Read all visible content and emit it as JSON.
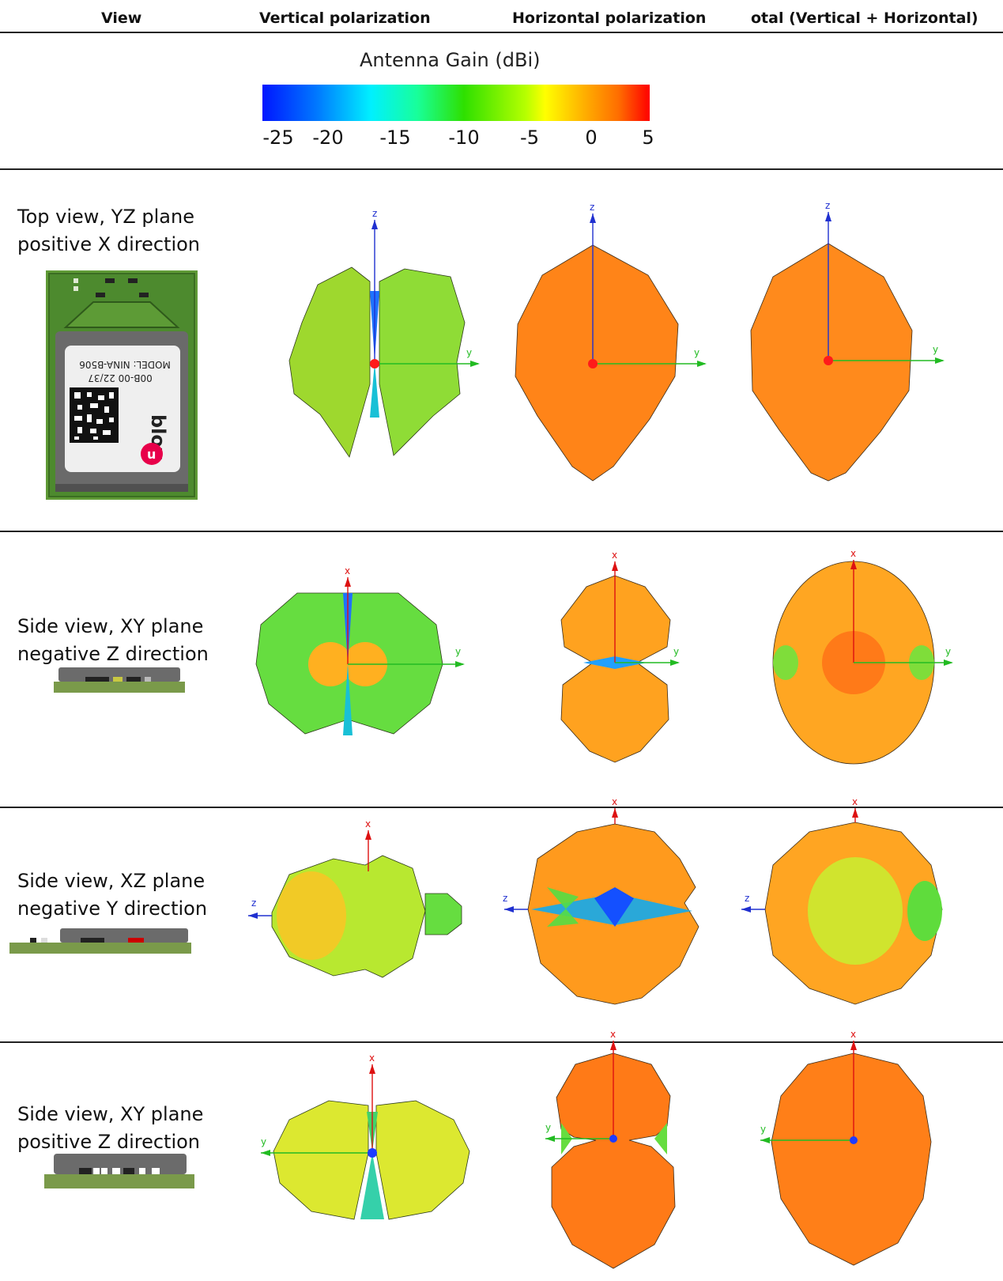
{
  "header": {
    "col_view": "View",
    "col_vertical": "Vertical polarization",
    "col_horizontal": "Horizontal polarization",
    "col_total": "otal (Vertical + Horizontal)"
  },
  "legend": {
    "title": "Antenna Gain (dBi)",
    "ticks": [
      "-25",
      "-20",
      "-15",
      "-10",
      "-5",
      "0",
      "5"
    ],
    "colors": [
      "#0016ff",
      "#00f0ff",
      "#2ee000",
      "#ffff00",
      "#ff6d00",
      "#ff0000"
    ]
  },
  "module": {
    "label_model": "MODEL: NINA-B506",
    "label_code": "00B-00 22/37",
    "logo_text": "blox",
    "logo_mark": "u"
  },
  "rows": [
    {
      "line1": "Top view, YZ plane",
      "line2": "positive X direction",
      "axes": [
        "z",
        "y"
      ]
    },
    {
      "line1": "Side view, XY plane",
      "line2": "negative Z direction",
      "axes": [
        "x",
        "y"
      ]
    },
    {
      "line1": "Side view, XZ plane",
      "line2": "negative Y direction",
      "axes": [
        "x",
        "z"
      ]
    },
    {
      "line1": "Side view, XY plane",
      "line2": "positive Z direction",
      "axes": [
        "x",
        "y"
      ]
    }
  ]
}
